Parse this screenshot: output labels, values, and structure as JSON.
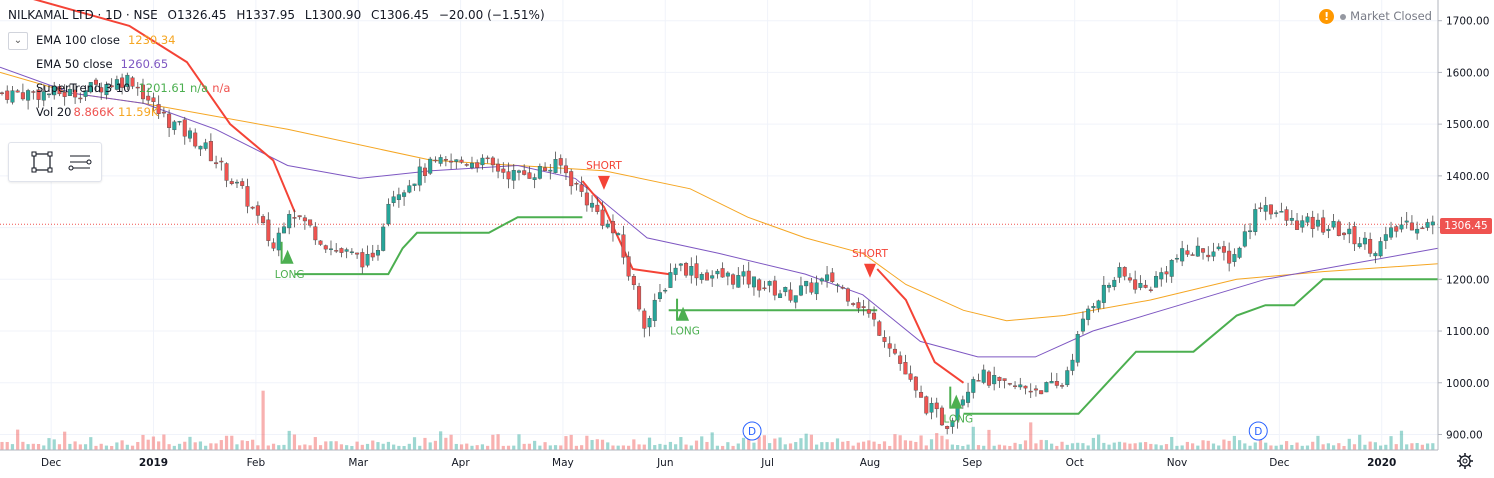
{
  "header": {
    "symbol": "NILKAMAL LTD · 1D · NSE",
    "open": "O1326.45",
    "high": "H1337.95",
    "low": "L1300.90",
    "close": "C1306.45",
    "change": "−20.00 (−1.51%)"
  },
  "market_status": "Market Closed",
  "indicators": {
    "ema100": {
      "name": "EMA 100 close",
      "value": "1230.34",
      "color": "#f5a623"
    },
    "ema50": {
      "name": "EMA 50 close",
      "value": "1260.65",
      "color": "#7e57c2"
    },
    "supertrend": {
      "name": "SuperTrend 3 10",
      "value": "1201.61",
      "na1": "n/a",
      "na2": "n/a"
    },
    "volume": {
      "name": "Vol 20",
      "value1": "8.866K",
      "value2": "11.59K"
    }
  },
  "last_price_label": "1306.45",
  "colors": {
    "up": "#26a69a",
    "down": "#ef5350",
    "supertrend_up": "#4caf50",
    "supertrend_down": "#f44336",
    "ema100": "#f5a623",
    "ema50": "#7e57c2"
  },
  "icons": [
    "chevron-down-icon",
    "rectangle-tool-icon",
    "text-tool-icon",
    "warning-icon",
    "settings-gear-icon",
    "dividend-marker-icon"
  ],
  "chart_data": {
    "type": "candlestick",
    "y_axis_ticks": [
      "1700.00",
      "1600.00",
      "1500.00",
      "1400.00",
      "1300.00",
      "1200.00",
      "1100.00",
      "1000.00",
      "900.00"
    ],
    "ylim": [
      870,
      1740
    ],
    "x_axis_labels": [
      "Dec",
      "2019",
      "Feb",
      "Mar",
      "Apr",
      "May",
      "Jun",
      "Jul",
      "Aug",
      "Sep",
      "Oct",
      "Nov",
      "Dec",
      "2020"
    ],
    "ema100": [
      [
        0,
        1600
      ],
      [
        0.05,
        1560
      ],
      [
        0.1,
        1540
      ],
      [
        0.2,
        1490
      ],
      [
        0.3,
        1430
      ],
      [
        0.36,
        1420
      ],
      [
        0.42,
        1410
      ],
      [
        0.48,
        1375
      ],
      [
        0.52,
        1320
      ],
      [
        0.56,
        1280
      ],
      [
        0.6,
        1250
      ],
      [
        0.63,
        1190
      ],
      [
        0.67,
        1140
      ],
      [
        0.7,
        1120
      ],
      [
        0.74,
        1130
      ],
      [
        0.8,
        1160
      ],
      [
        0.86,
        1200
      ],
      [
        0.92,
        1215
      ],
      [
        1,
        1230
      ]
    ],
    "ema50": [
      [
        0,
        1610
      ],
      [
        0.05,
        1560
      ],
      [
        0.1,
        1540
      ],
      [
        0.15,
        1490
      ],
      [
        0.2,
        1420
      ],
      [
        0.25,
        1395
      ],
      [
        0.3,
        1410
      ],
      [
        0.36,
        1420
      ],
      [
        0.4,
        1395
      ],
      [
        0.45,
        1280
      ],
      [
        0.5,
        1250
      ],
      [
        0.56,
        1210
      ],
      [
        0.6,
        1170
      ],
      [
        0.64,
        1080
      ],
      [
        0.68,
        1050
      ],
      [
        0.72,
        1050
      ],
      [
        0.76,
        1100
      ],
      [
        0.82,
        1150
      ],
      [
        0.88,
        1200
      ],
      [
        0.94,
        1230
      ],
      [
        1,
        1260
      ]
    ],
    "supertrend_segments": [
      {
        "dir": "down",
        "points": [
          [
            0,
            1760
          ],
          [
            0.09,
            1690
          ],
          [
            0.13,
            1620
          ],
          [
            0.16,
            1500
          ],
          [
            0.19,
            1430
          ],
          [
            0.205,
            1330
          ]
        ]
      },
      {
        "dir": "up",
        "points": [
          [
            0.205,
            1210
          ],
          [
            0.27,
            1210
          ],
          [
            0.28,
            1260
          ],
          [
            0.29,
            1290
          ],
          [
            0.34,
            1290
          ],
          [
            0.36,
            1320
          ],
          [
            0.405,
            1320
          ]
        ]
      },
      {
        "dir": "down",
        "points": [
          [
            0.405,
            1390
          ],
          [
            0.42,
            1340
          ],
          [
            0.44,
            1220
          ],
          [
            0.465,
            1210
          ]
        ]
      },
      {
        "dir": "up",
        "points": [
          [
            0.465,
            1140
          ],
          [
            0.5,
            1140
          ],
          [
            0.58,
            1140
          ],
          [
            0.61,
            1140
          ]
        ]
      },
      {
        "dir": "down",
        "points": [
          [
            0.61,
            1220
          ],
          [
            0.63,
            1160
          ],
          [
            0.65,
            1040
          ],
          [
            0.67,
            1000
          ]
        ]
      },
      {
        "dir": "up",
        "points": [
          [
            0.67,
            940
          ],
          [
            0.75,
            940
          ],
          [
            0.76,
            970
          ],
          [
            0.79,
            1060
          ],
          [
            0.83,
            1060
          ],
          [
            0.86,
            1130
          ],
          [
            0.88,
            1150
          ],
          [
            0.9,
            1150
          ],
          [
            0.92,
            1200
          ],
          [
            1,
            1200
          ]
        ]
      }
    ],
    "signals": [
      {
        "label": "LONG",
        "type": "long",
        "x": 0.2,
        "y": 1230
      },
      {
        "label": "SHORT",
        "type": "short",
        "x": 0.42,
        "y": 1400
      },
      {
        "label": "LONG",
        "type": "long",
        "x": 0.475,
        "y": 1120
      },
      {
        "label": "SHORT",
        "type": "short",
        "x": 0.605,
        "y": 1230
      },
      {
        "label": "LONG",
        "type": "long",
        "x": 0.665,
        "y": 950
      }
    ],
    "dividend_markers": [
      "D",
      "D"
    ],
    "last_price": 1306.45
  }
}
